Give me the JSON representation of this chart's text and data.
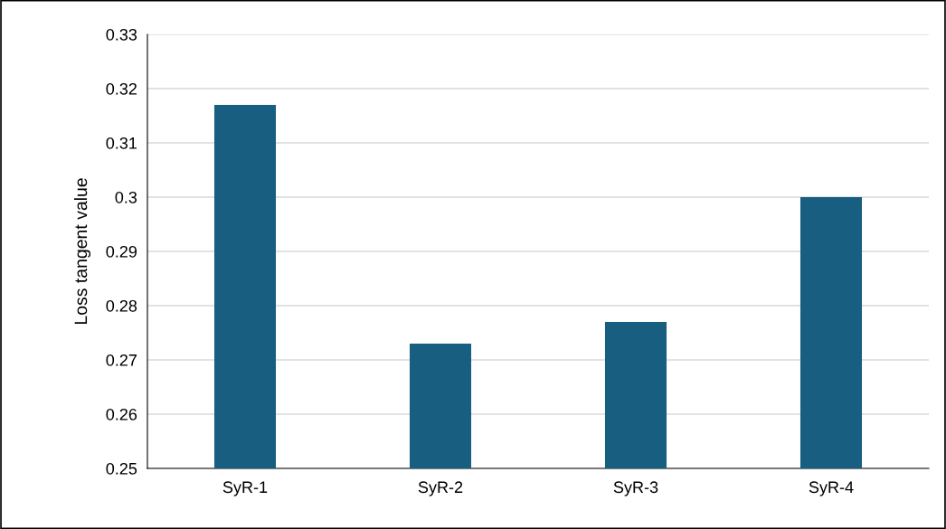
{
  "chart_data": {
    "type": "bar",
    "ylabel": "Loss tangent value",
    "categories": [
      "SyR-1",
      "SyR-2",
      "SyR-3",
      "SyR-4"
    ],
    "values": [
      0.317,
      0.273,
      0.277,
      0.3
    ],
    "color": "#175e80",
    "ylim": [
      0.25,
      0.33
    ],
    "yticks": [
      {
        "value": 0.25,
        "label": "0.25"
      },
      {
        "value": 0.26,
        "label": "0.26"
      },
      {
        "value": 0.27,
        "label": "0.27"
      },
      {
        "value": 0.28,
        "label": "0.28"
      },
      {
        "value": 0.29,
        "label": "0.29"
      },
      {
        "value": 0.3,
        "label": "0.3"
      },
      {
        "value": 0.31,
        "label": "0.31"
      },
      {
        "value": 0.32,
        "label": "0.32"
      },
      {
        "value": 0.33,
        "label": "0.33"
      }
    ],
    "grid": "y"
  }
}
